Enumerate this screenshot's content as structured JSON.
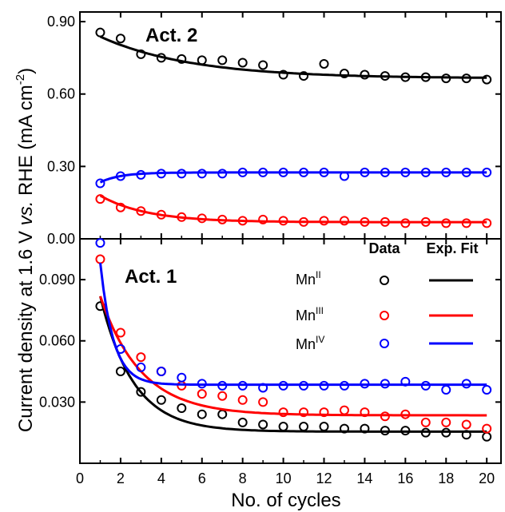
{
  "chart_data": {
    "type": "scatter",
    "xlabel": "No. of cycles",
    "ylabel_parts": {
      "prefix": "Current density at 1.6 V ",
      "italic": "vs.",
      "mid": " RHE (mA cm",
      "sup": "-2",
      "suffix": ")"
    },
    "x_ticks": [
      "0",
      "2",
      "4",
      "6",
      "8",
      "10",
      "12",
      "14",
      "16",
      "18",
      "20"
    ],
    "xlim": [
      0,
      20.7
    ],
    "legend": {
      "placement": "top-right of lower panel",
      "header_data": "Data",
      "header_fit": "Exp. Fit",
      "entries": [
        {
          "base": "Mn",
          "sup": "II",
          "color": "#000000"
        },
        {
          "base": "Mn",
          "sup": "III",
          "color": "#ff0000"
        },
        {
          "base": "Mn",
          "sup": "IV",
          "color": "#0000ff"
        }
      ]
    },
    "panels": [
      {
        "title": "Act. 2",
        "ylim": [
          0,
          0.94
        ],
        "y_ticks": [
          {
            "value": 0.0,
            "label": "0.00"
          },
          {
            "value": 0.3,
            "label": "0.30"
          },
          {
            "value": 0.6,
            "label": "0.60"
          },
          {
            "value": 0.9,
            "label": "0.90"
          }
        ],
        "series": [
          {
            "color": "#000000",
            "x": [
              1,
              2,
              3,
              4,
              5,
              6,
              7,
              8,
              9,
              10,
              11,
              12,
              13,
              14,
              15,
              16,
              17,
              18,
              19,
              20
            ],
            "y": [
              0.855,
              0.83,
              0.765,
              0.75,
              0.745,
              0.74,
              0.74,
              0.73,
              0.72,
              0.68,
              0.675,
              0.725,
              0.685,
              0.68,
              0.675,
              0.67,
              0.67,
              0.665,
              0.665,
              0.66
            ],
            "fit": {
              "A": 0.665,
              "B": 0.216,
              "tau": 4.5
            }
          },
          {
            "color": "#ff0000",
            "x": [
              1,
              2,
              3,
              4,
              5,
              6,
              7,
              8,
              9,
              10,
              11,
              12,
              13,
              14,
              15,
              16,
              17,
              18,
              19,
              20
            ],
            "y": [
              0.165,
              0.13,
              0.115,
              0.1,
              0.09,
              0.085,
              0.08,
              0.075,
              0.08,
              0.075,
              0.07,
              0.075,
              0.075,
              0.07,
              0.07,
              0.065,
              0.07,
              0.065,
              0.065,
              0.065
            ],
            "fit": {
              "A": 0.069,
              "B": 0.17,
              "tau": 2.3
            }
          },
          {
            "color": "#0000ff",
            "x": [
              1,
              2,
              3,
              4,
              5,
              6,
              7,
              8,
              9,
              10,
              11,
              12,
              13,
              14,
              15,
              16,
              17,
              18,
              19,
              20
            ],
            "y": [
              0.23,
              0.26,
              0.265,
              0.27,
              0.27,
              0.27,
              0.27,
              0.275,
              0.275,
              0.275,
              0.275,
              0.275,
              0.26,
              0.275,
              0.275,
              0.275,
              0.275,
              0.275,
              0.275,
              0.275
            ],
            "fit": {
              "A": 0.275,
              "B": -0.111,
              "tau": 1.0
            }
          }
        ]
      },
      {
        "title": "Act. 1",
        "ylim": [
          0,
          0.11
        ],
        "y_ticks": [
          {
            "value": 0.03,
            "label": "0.030"
          },
          {
            "value": 0.06,
            "label": "0.060"
          },
          {
            "value": 0.09,
            "label": "0.090"
          }
        ],
        "series": [
          {
            "color": "#000000",
            "x": [
              1,
              2,
              3,
              4,
              5,
              6,
              7,
              8,
              9,
              10,
              11,
              12,
              13,
              14,
              15,
              16,
              17,
              18,
              19,
              20
            ],
            "y": [
              0.077,
              0.045,
              0.035,
              0.031,
              0.027,
              0.024,
              0.024,
              0.02,
              0.019,
              0.018,
              0.018,
              0.018,
              0.017,
              0.017,
              0.016,
              0.016,
              0.015,
              0.015,
              0.014,
              0.013
            ],
            "fit": {
              "A": 0.0155,
              "B": 0.123,
              "tau": 1.62
            }
          },
          {
            "color": "#ff0000",
            "x": [
              1,
              2,
              3,
              4,
              5,
              6,
              7,
              8,
              9,
              10,
              11,
              12,
              13,
              14,
              15,
              16,
              17,
              18,
              19,
              20
            ],
            "y": [
              0.1,
              0.064,
              0.052,
              0.045,
              0.038,
              0.034,
              0.033,
              0.031,
              0.03,
              0.025,
              0.025,
              0.025,
              0.026,
              0.025,
              0.023,
              0.024,
              0.02,
              0.02,
              0.019,
              0.017
            ],
            "fit": {
              "A": 0.0235,
              "B": 0.096,
              "tau": 2.01
            }
          },
          {
            "color": "#0000ff",
            "x": [
              1,
              2,
              3,
              4,
              5,
              6,
              7,
              8,
              9,
              10,
              11,
              12,
              13,
              14,
              15,
              16,
              17,
              18,
              19,
              20
            ],
            "y": [
              0.108,
              0.056,
              0.047,
              0.045,
              0.042,
              0.039,
              0.038,
              0.038,
              0.037,
              0.038,
              0.038,
              0.038,
              0.038,
              0.039,
              0.039,
              0.04,
              0.038,
              0.036,
              0.039,
              0.036
            ],
            "fit": {
              "A": 0.0385,
              "B": 0.278,
              "tau": 0.65
            }
          }
        ]
      }
    ]
  }
}
